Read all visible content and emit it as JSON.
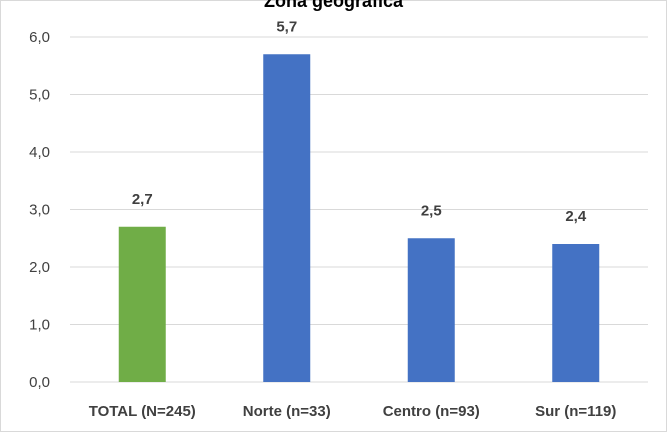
{
  "chart_data": {
    "type": "bar",
    "title": "Zona geográfica",
    "categories": [
      "TOTAL (N=245)",
      "Norte (n=33)",
      "Centro (n=93)",
      "Sur (n=119)"
    ],
    "values": [
      2.7,
      5.7,
      2.5,
      2.4
    ],
    "data_labels": [
      "2,7",
      "5,7",
      "2,5",
      "2,4"
    ],
    "bar_colors": [
      "#70ad47",
      "#4472c4",
      "#4472c4",
      "#4472c4"
    ],
    "ylim": [
      0,
      6
    ],
    "yticks": [
      0,
      1,
      2,
      3,
      4,
      5,
      6
    ],
    "ytick_labels": [
      "0,0",
      "1,0",
      "2,0",
      "3,0",
      "4,0",
      "5,0",
      "6,0"
    ],
    "grid": true,
    "gridline_color": "#d9d9d9",
    "xlabel": "",
    "ylabel": ""
  }
}
